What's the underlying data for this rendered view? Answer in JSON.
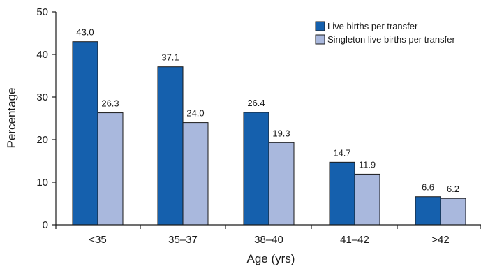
{
  "chart_data": {
    "type": "bar",
    "categories": [
      "<35",
      "35–37",
      "38–40",
      "41–42",
      ">42"
    ],
    "series": [
      {
        "name": "Live births per transfer",
        "values": [
          43.0,
          37.1,
          26.4,
          14.7,
          6.6
        ],
        "value_labels": [
          "43.0",
          "37.1",
          "26.4",
          "14.7",
          "6.6"
        ],
        "color": "#1560ad"
      },
      {
        "name": "Singleton live births per transfer",
        "values": [
          26.3,
          24.0,
          19.3,
          11.9,
          6.2
        ],
        "value_labels": [
          "26.3",
          "24.0",
          "19.3",
          "11.9",
          "6.2"
        ],
        "color": "#a9b8dd"
      }
    ],
    "title": "",
    "xlabel": "Age (yrs)",
    "ylabel": "Percentage",
    "ylim": [
      0,
      50
    ],
    "yticks": [
      0,
      10,
      20,
      30,
      40,
      50
    ],
    "grid": false,
    "legend": "top-right"
  }
}
